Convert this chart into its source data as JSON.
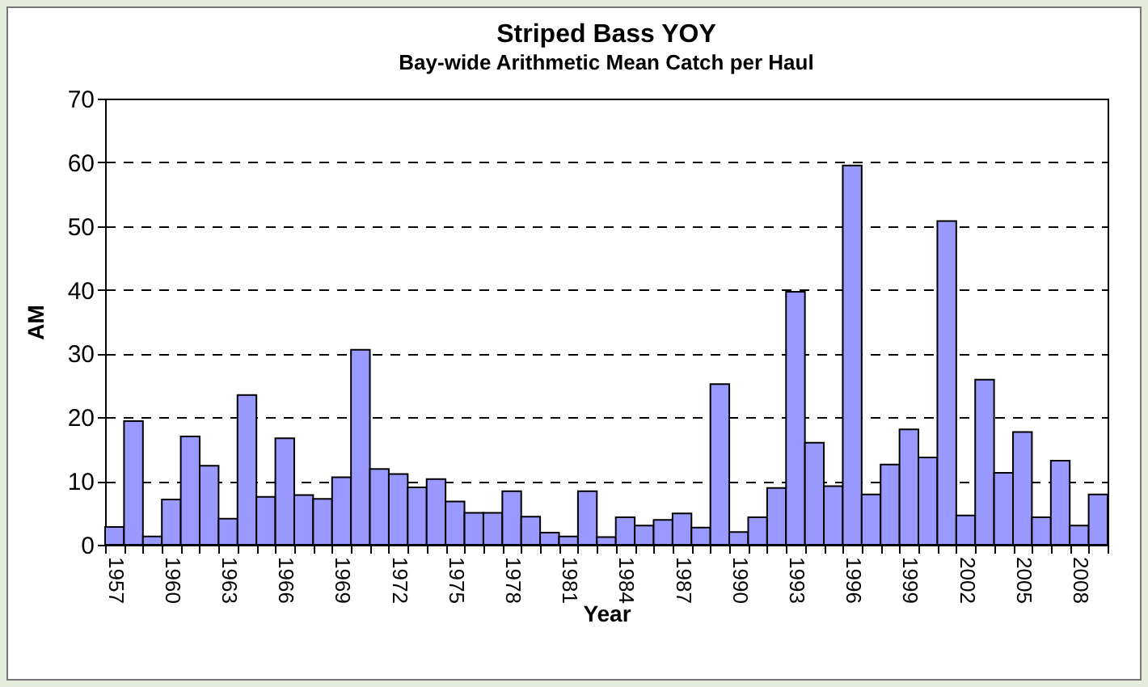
{
  "chart_data": {
    "type": "bar",
    "title": "Striped Bass YOY",
    "subtitle": "Bay-wide Arithmetic Mean Catch per Haul",
    "xlabel": "Year",
    "ylabel": "AM",
    "categories": [
      "1957",
      null,
      null,
      "1960",
      null,
      null,
      "1963",
      null,
      null,
      "1966",
      null,
      null,
      "1969",
      null,
      null,
      "1972",
      null,
      null,
      "1975",
      null,
      null,
      "1978",
      null,
      null,
      "1981",
      null,
      null,
      "1984",
      null,
      null,
      "1987",
      null,
      null,
      "1990",
      null,
      null,
      "1993",
      null,
      null,
      "1996",
      null,
      null,
      "1999",
      null,
      null,
      "2002",
      null,
      null,
      "2005",
      null,
      null,
      "2008",
      null
    ],
    "series": [
      {
        "color": "#9999ff",
        "values": [
          2.8,
          19.4,
          1.3,
          7.1,
          17,
          12.4,
          4.1,
          23.5,
          7.5,
          16.7,
          7.8,
          7.2,
          10.6,
          30.6,
          11.9,
          11.1,
          9,
          10.3,
          6.8,
          5,
          5,
          8.4,
          4.4,
          1.9,
          1.3,
          8.4,
          1.2,
          4.3,
          3,
          3.9,
          4.9,
          2.7,
          25.2,
          2,
          4.3,
          8.9,
          39.7,
          16,
          9.2,
          59.5,
          7.9,
          12.6,
          18.1,
          13.7,
          50.8,
          4.6,
          25.9,
          11.3,
          17.7,
          4.3,
          13.2,
          3,
          7.9
        ]
      }
    ],
    "ylim": [
      0,
      70
    ],
    "yticks": [
      0,
      10,
      20,
      30,
      40,
      50,
      60,
      70
    ],
    "grid": "y",
    "legend": false
  }
}
